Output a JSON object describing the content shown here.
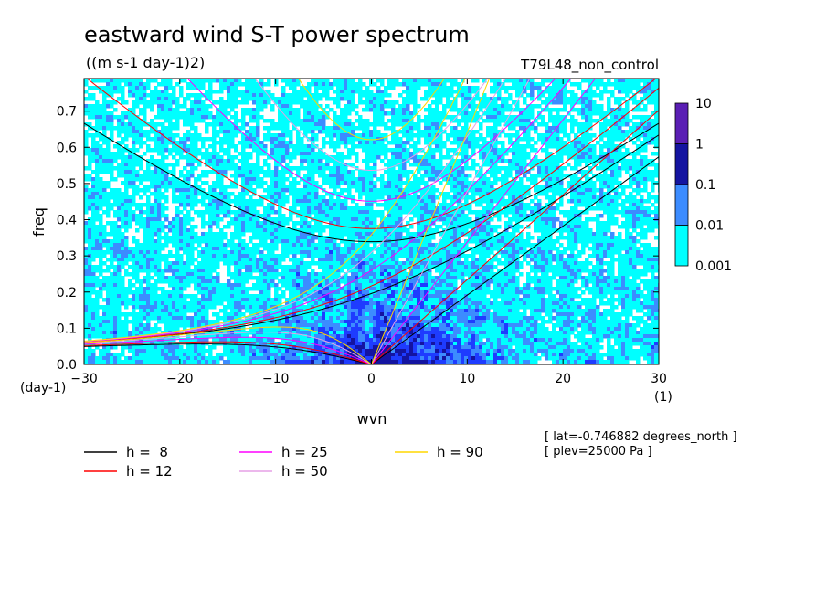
{
  "chart_data": {
    "type": "heatmap",
    "title": "eastward wind S-T power spectrum",
    "subtitle": "((m s-1 day-1)2)",
    "run_label": "T79L48_non_control",
    "xlabel": "wvn",
    "ylabel": "freq",
    "x_unit_label": "(1)",
    "y_unit_label": "(day-1)",
    "xlim": [
      -30,
      30
    ],
    "ylim": [
      0,
      0.79
    ],
    "x_ticks": [
      "-30",
      "-20",
      "-10",
      "0",
      "10",
      "20",
      "30"
    ],
    "y_ticks": [
      "0.0",
      "0.1",
      "0.2",
      "0.3",
      "0.4",
      "0.5",
      "0.6",
      "0.7"
    ],
    "colorbar": {
      "labels": [
        "10",
        "1",
        "0.1",
        "0.01",
        "0.001"
      ],
      "colors": [
        "#5a1eb4",
        "#1414a0",
        "#1e3cff",
        "#3c8cff",
        "#00ffff"
      ],
      "scale": "log"
    },
    "series": [
      {
        "name": "h =  8",
        "color": "#000000",
        "equivalent_depth": 8
      },
      {
        "name": "h = 12",
        "color": "#ff0000",
        "equivalent_depth": 12
      },
      {
        "name": "h = 25",
        "color": "#ff00ff",
        "equivalent_depth": 25
      },
      {
        "name": "h = 50",
        "color": "#e6a0e6",
        "equivalent_depth": 50
      },
      {
        "name": "h = 90",
        "color": "#ffd700",
        "equivalent_depth": 90
      }
    ],
    "annotations": [
      "[ lat=-0.746882 degrees_north ]",
      "[ plev=25000 Pa ]"
    ],
    "grid": false,
    "legend_placement": "bottom-left"
  }
}
